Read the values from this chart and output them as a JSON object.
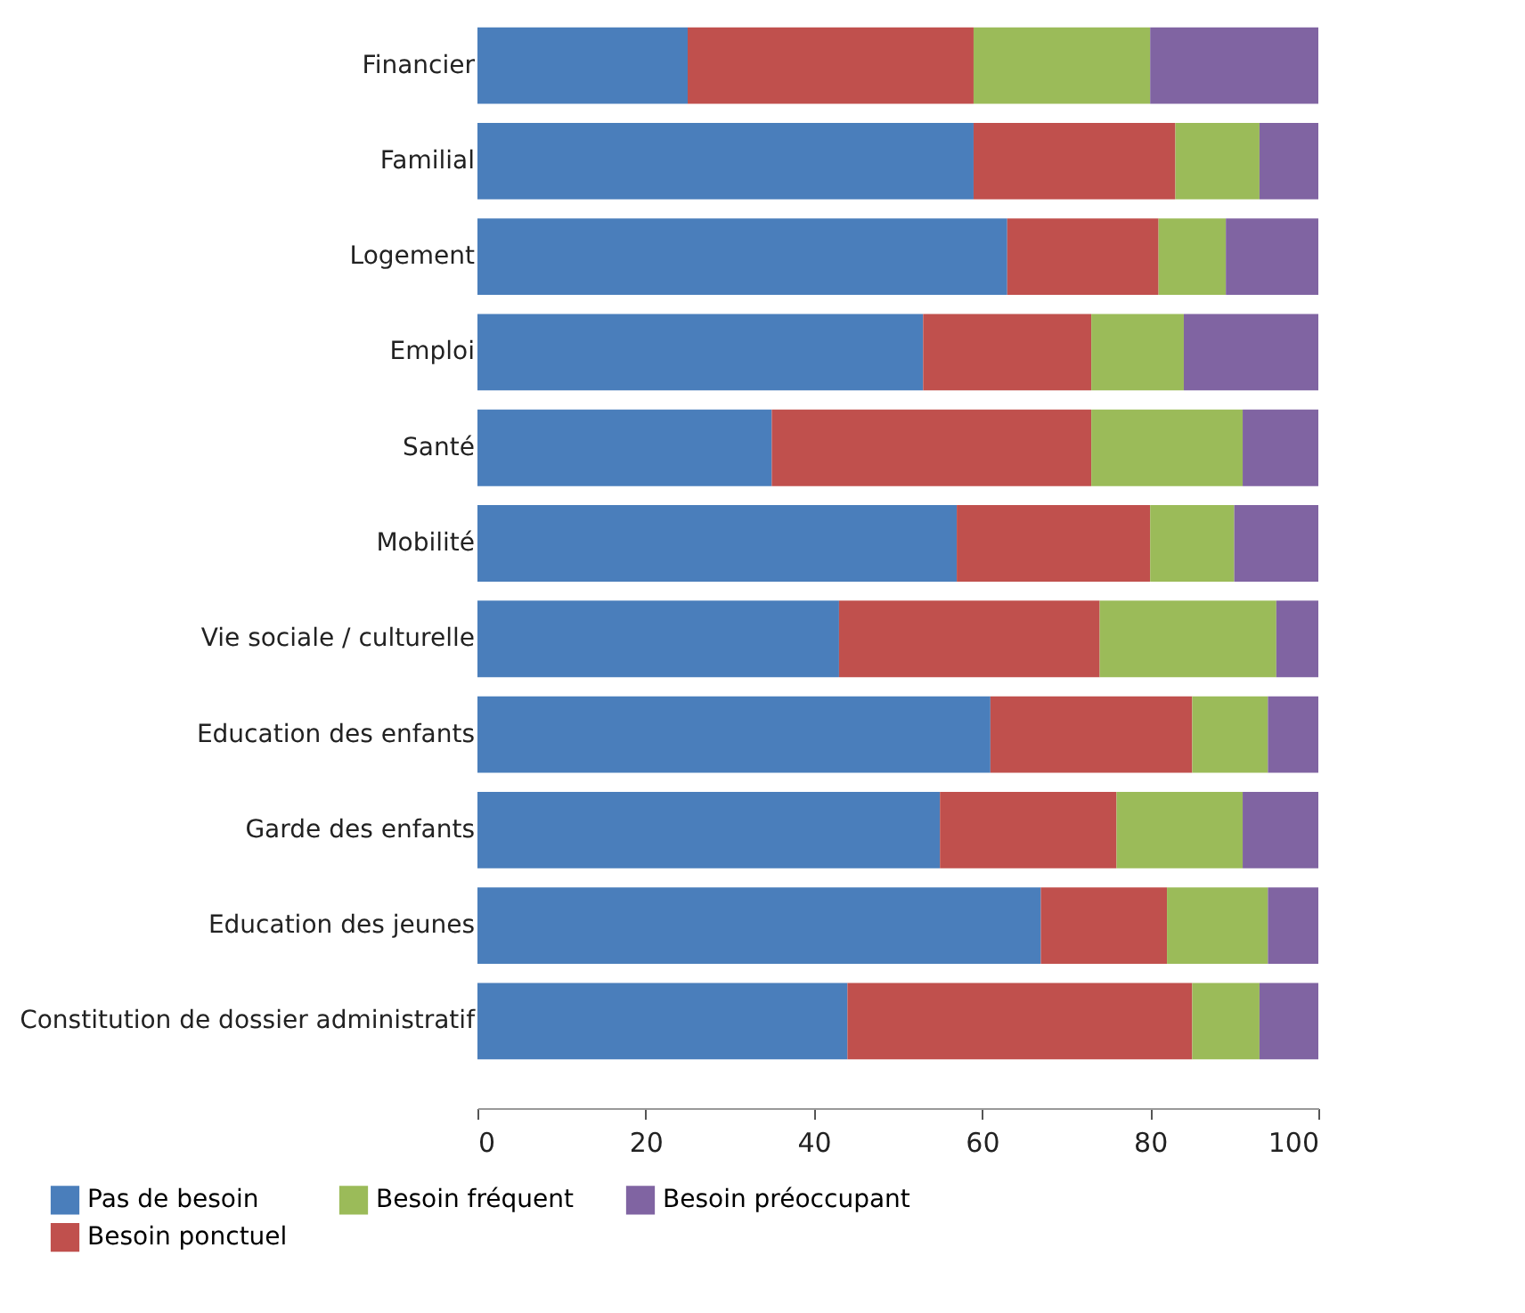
{
  "chart_data": {
    "type": "bar",
    "orientation": "horizontal",
    "stacked": true,
    "categories": [
      "Financier",
      "Familial",
      "Logement",
      "Emploi",
      "Santé",
      "Mobilité",
      "Vie sociale / culturelle",
      "Education des enfants",
      "Garde des enfants",
      "Education des jeunes",
      "Constitution de dossier administratif"
    ],
    "series": [
      {
        "name": "Pas de besoin",
        "color": "#4a7ebb",
        "values": [
          25,
          59,
          63,
          53,
          35,
          57,
          43,
          61,
          55,
          67,
          44
        ]
      },
      {
        "name": "Besoin ponctuel",
        "color": "#c0504d",
        "values": [
          34,
          24,
          18,
          20,
          38,
          23,
          31,
          24,
          21,
          15,
          41
        ]
      },
      {
        "name": "Besoin fréquent",
        "color": "#9bbb59",
        "values": [
          21,
          10,
          8,
          11,
          18,
          10,
          21,
          9,
          15,
          12,
          8
        ]
      },
      {
        "name": "Besoin préoccupant",
        "color": "#8064a2",
        "values": [
          20,
          7,
          11,
          16,
          9,
          10,
          5,
          6,
          9,
          6,
          7
        ]
      }
    ],
    "xlim": [
      0,
      100
    ],
    "xticks": [
      0,
      20,
      40,
      60,
      80,
      100
    ],
    "grid": false,
    "legend": "bottom"
  }
}
